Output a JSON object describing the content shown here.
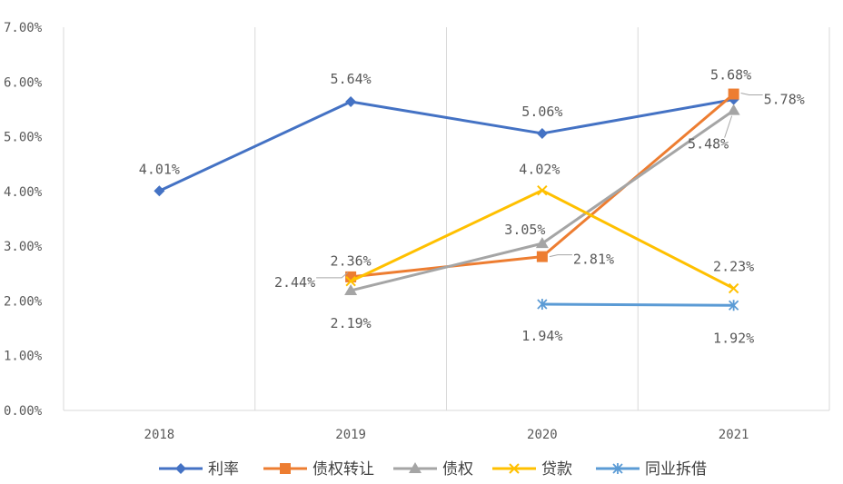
{
  "chart_data": {
    "type": "line",
    "title": "",
    "xlabel": "",
    "ylabel": "",
    "categories": [
      "2018",
      "2019",
      "2020",
      "2021"
    ],
    "ylim": [
      0,
      0.07
    ],
    "yticks": [
      "0.00%",
      "1.00%",
      "2.00%",
      "3.00%",
      "4.00%",
      "5.00%",
      "6.00%",
      "7.00%"
    ],
    "grid": "vertical",
    "legend_position": "bottom",
    "series": [
      {
        "name": "利率",
        "color": "#4472C4",
        "marker": "diamond",
        "values": [
          0.0401,
          0.0564,
          0.0506,
          0.0568
        ],
        "labels": [
          "4.01%",
          "5.64%",
          "5.06%",
          "5.68%"
        ]
      },
      {
        "name": "债权转让",
        "color": "#ED7D31",
        "marker": "square",
        "values": [
          null,
          0.0244,
          0.0281,
          0.0578
        ],
        "labels": [
          null,
          "2.44%",
          "2.81%",
          "5.78%"
        ]
      },
      {
        "name": "债权",
        "color": "#A5A5A5",
        "marker": "triangle",
        "values": [
          null,
          0.0219,
          0.0305,
          0.0548
        ],
        "labels": [
          null,
          "2.19%",
          "3.05%",
          "5.48%"
        ]
      },
      {
        "name": "贷款",
        "color": "#FFC000",
        "marker": "x",
        "values": [
          null,
          0.0236,
          0.0402,
          0.0223
        ],
        "labels": [
          null,
          "2.36%",
          "4.02%",
          "2.23%"
        ]
      },
      {
        "name": "同业拆借",
        "color": "#5B9BD5",
        "marker": "star",
        "values": [
          null,
          null,
          0.0194,
          0.0192
        ],
        "labels": [
          null,
          null,
          "1.94%",
          "1.92%"
        ]
      }
    ]
  }
}
